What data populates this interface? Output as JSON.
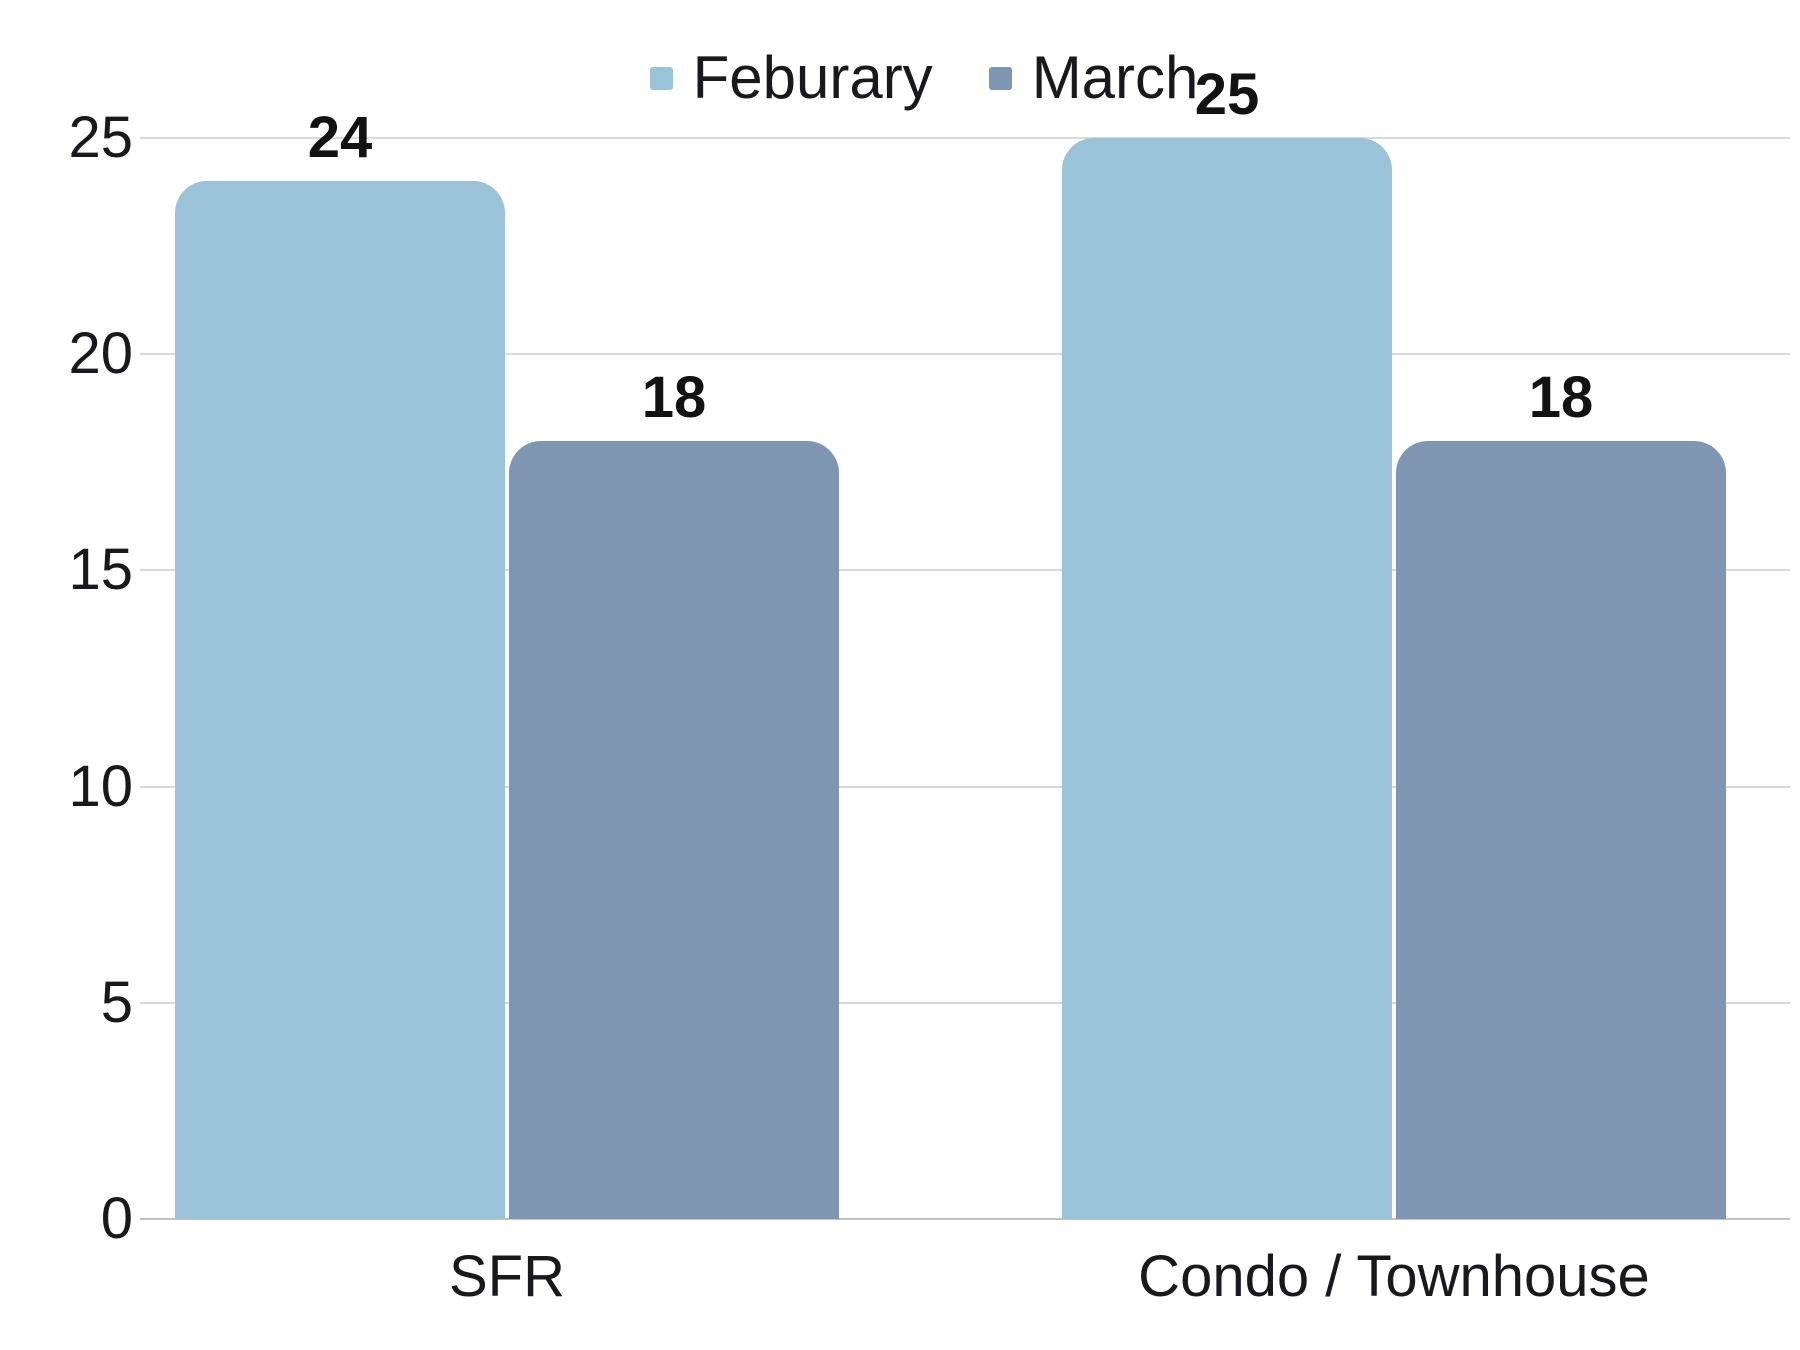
{
  "chart_data": {
    "type": "bar",
    "title": "",
    "categories": [
      "SFR",
      "Condo / Townhouse"
    ],
    "series": [
      {
        "name": "Feburary",
        "color": "#9ac2d9",
        "values": [
          24,
          25
        ]
      },
      {
        "name": "March",
        "color": "#7f96b3",
        "values": [
          18,
          18
        ]
      }
    ],
    "y_axis": {
      "min": 0,
      "max": 25,
      "tick_step": 5,
      "tick_labels": [
        "0",
        "5",
        "10",
        "15",
        "20",
        "25"
      ]
    },
    "show_data_labels": true,
    "grid": "horizontal",
    "legend_position": "top-center"
  },
  "colors": {
    "background": "#ffffff",
    "grid_line": "#d9d9d9",
    "baseline": "#c2c2c2",
    "text": "#18181d",
    "value_label": "#121212"
  }
}
